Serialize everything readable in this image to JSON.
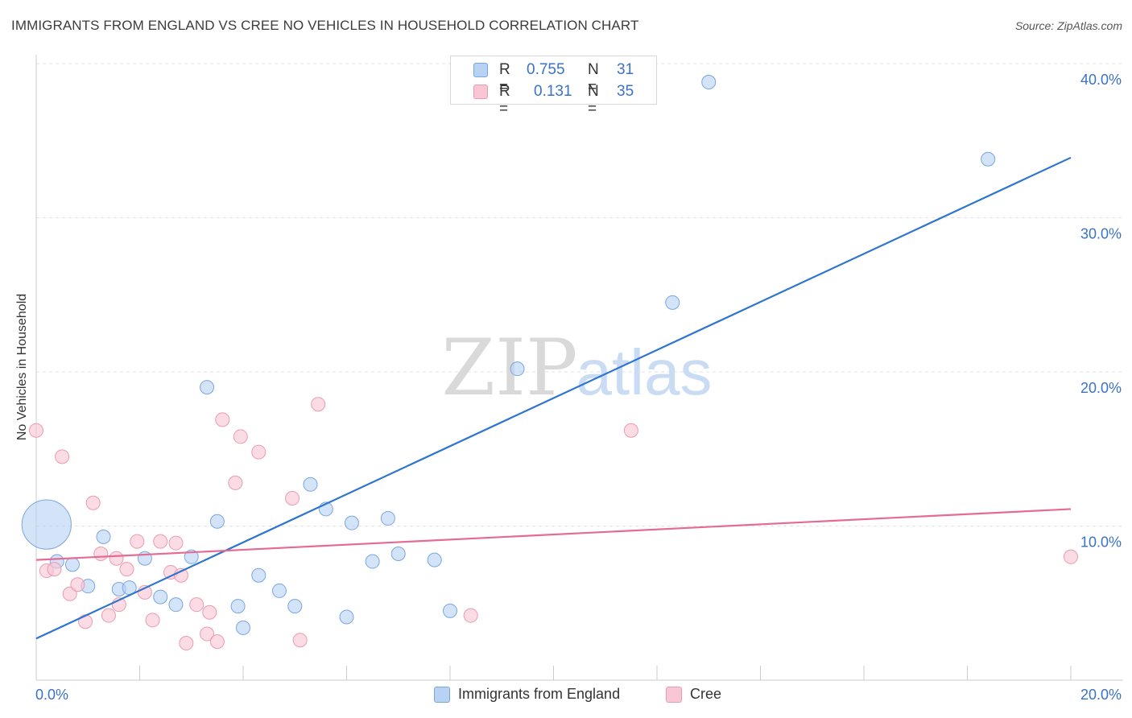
{
  "header": {
    "title": "IMMIGRANTS FROM ENGLAND VS CREE NO VEHICLES IN HOUSEHOLD CORRELATION CHART",
    "source": "Source: ZipAtlas.com"
  },
  "watermark": {
    "zip": "ZIP",
    "atlas": "atlas"
  },
  "colors": {
    "blue_fill": "#b8d2f4",
    "blue_stroke": "#7aa6e0",
    "blue_line": "#2e75d0",
    "pink_fill": "#f8c6d4",
    "pink_stroke": "#eb9ab2",
    "pink_line": "#e46b93",
    "tick_text": "#3a72c8"
  },
  "legend": {
    "rows": [
      {
        "r_label": "R =",
        "r_value": "0.755",
        "n_label": "N =",
        "n_value": "31"
      },
      {
        "r_label": "R =",
        "r_value": "0.131",
        "n_label": "N =",
        "n_value": "35"
      }
    ],
    "bottom": [
      "Immigrants from England",
      "Cree"
    ]
  },
  "chart_data": {
    "type": "scatter",
    "title": "IMMIGRANTS FROM ENGLAND VS CREE NO VEHICLES IN HOUSEHOLD CORRELATION CHART",
    "xlabel": "",
    "ylabel": "No Vehicles in Household",
    "xlim": [
      0,
      20
    ],
    "ylim": [
      0,
      40
    ],
    "x_tick_labels": [
      {
        "value": 0,
        "label": "0.0%"
      },
      {
        "value": 20,
        "label": "20.0%"
      }
    ],
    "y_tick_labels": [
      {
        "value": 10,
        "label": "10.0%"
      },
      {
        "value": 20,
        "label": "20.0%"
      },
      {
        "value": 30,
        "label": "30.0%"
      },
      {
        "value": 40,
        "label": "40.0%"
      }
    ],
    "grid": true,
    "series": [
      {
        "name": "Immigrants from England",
        "color": "blue",
        "trend": {
          "x": [
            0,
            20
          ],
          "y": [
            2.7,
            33.9
          ]
        },
        "points": [
          {
            "x": 0.2,
            "y": 10.1,
            "s": 3.6
          },
          {
            "x": 0.4,
            "y": 7.7,
            "s": 1
          },
          {
            "x": 0.7,
            "y": 7.5,
            "s": 1
          },
          {
            "x": 1.0,
            "y": 6.1,
            "s": 1
          },
          {
            "x": 1.3,
            "y": 9.3,
            "s": 1
          },
          {
            "x": 1.6,
            "y": 5.9,
            "s": 1
          },
          {
            "x": 1.8,
            "y": 6.0,
            "s": 1
          },
          {
            "x": 2.1,
            "y": 7.9,
            "s": 1
          },
          {
            "x": 2.4,
            "y": 5.4,
            "s": 1
          },
          {
            "x": 2.7,
            "y": 4.9,
            "s": 1
          },
          {
            "x": 3.0,
            "y": 8.0,
            "s": 1
          },
          {
            "x": 3.3,
            "y": 19.0,
            "s": 1
          },
          {
            "x": 3.5,
            "y": 10.3,
            "s": 1
          },
          {
            "x": 3.9,
            "y": 4.8,
            "s": 1
          },
          {
            "x": 4.0,
            "y": 3.4,
            "s": 1
          },
          {
            "x": 4.3,
            "y": 6.8,
            "s": 1
          },
          {
            "x": 4.7,
            "y": 5.8,
            "s": 1
          },
          {
            "x": 5.0,
            "y": 4.8,
            "s": 1
          },
          {
            "x": 5.3,
            "y": 12.7,
            "s": 1
          },
          {
            "x": 5.6,
            "y": 11.1,
            "s": 1
          },
          {
            "x": 6.0,
            "y": 4.1,
            "s": 1
          },
          {
            "x": 6.1,
            "y": 10.2,
            "s": 1
          },
          {
            "x": 6.5,
            "y": 7.7,
            "s": 1
          },
          {
            "x": 6.8,
            "y": 10.5,
            "s": 1
          },
          {
            "x": 7.0,
            "y": 8.2,
            "s": 1
          },
          {
            "x": 7.7,
            "y": 7.8,
            "s": 1
          },
          {
            "x": 8.0,
            "y": 4.5,
            "s": 1
          },
          {
            "x": 9.3,
            "y": 20.2,
            "s": 1
          },
          {
            "x": 12.3,
            "y": 24.5,
            "s": 1
          },
          {
            "x": 13.0,
            "y": 38.8,
            "s": 1
          },
          {
            "x": 18.4,
            "y": 33.8,
            "s": 1
          }
        ]
      },
      {
        "name": "Cree",
        "color": "pink",
        "trend": {
          "x": [
            0,
            20
          ],
          "y": [
            7.8,
            11.1
          ]
        },
        "points": [
          {
            "x": 0.0,
            "y": 16.2,
            "s": 1
          },
          {
            "x": 0.2,
            "y": 7.1,
            "s": 1
          },
          {
            "x": 0.35,
            "y": 7.2,
            "s": 1
          },
          {
            "x": 0.5,
            "y": 14.5,
            "s": 1
          },
          {
            "x": 0.65,
            "y": 5.6,
            "s": 1
          },
          {
            "x": 0.8,
            "y": 6.2,
            "s": 1
          },
          {
            "x": 0.95,
            "y": 3.8,
            "s": 1
          },
          {
            "x": 1.1,
            "y": 11.5,
            "s": 1
          },
          {
            "x": 1.25,
            "y": 8.2,
            "s": 1
          },
          {
            "x": 1.4,
            "y": 4.2,
            "s": 1
          },
          {
            "x": 1.55,
            "y": 7.9,
            "s": 1
          },
          {
            "x": 1.6,
            "y": 4.9,
            "s": 1
          },
          {
            "x": 1.75,
            "y": 7.2,
            "s": 1
          },
          {
            "x": 1.95,
            "y": 9.0,
            "s": 1
          },
          {
            "x": 2.1,
            "y": 5.7,
            "s": 1
          },
          {
            "x": 2.25,
            "y": 3.9,
            "s": 1
          },
          {
            "x": 2.4,
            "y": 9.0,
            "s": 1
          },
          {
            "x": 2.6,
            "y": 7.0,
            "s": 1
          },
          {
            "x": 2.7,
            "y": 8.9,
            "s": 1
          },
          {
            "x": 2.8,
            "y": 6.8,
            "s": 1
          },
          {
            "x": 2.9,
            "y": 2.4,
            "s": 1
          },
          {
            "x": 3.1,
            "y": 4.9,
            "s": 1
          },
          {
            "x": 3.3,
            "y": 3.0,
            "s": 1
          },
          {
            "x": 3.35,
            "y": 4.4,
            "s": 1
          },
          {
            "x": 3.5,
            "y": 2.5,
            "s": 1
          },
          {
            "x": 3.6,
            "y": 16.9,
            "s": 1
          },
          {
            "x": 3.85,
            "y": 12.8,
            "s": 1
          },
          {
            "x": 3.95,
            "y": 15.8,
            "s": 1
          },
          {
            "x": 4.3,
            "y": 14.8,
            "s": 1
          },
          {
            "x": 4.95,
            "y": 11.8,
            "s": 1
          },
          {
            "x": 5.1,
            "y": 2.6,
            "s": 1
          },
          {
            "x": 5.45,
            "y": 17.9,
            "s": 1
          },
          {
            "x": 8.4,
            "y": 4.2,
            "s": 1
          },
          {
            "x": 11.5,
            "y": 16.2,
            "s": 1
          },
          {
            "x": 20.0,
            "y": 8.0,
            "s": 1
          }
        ]
      }
    ]
  }
}
